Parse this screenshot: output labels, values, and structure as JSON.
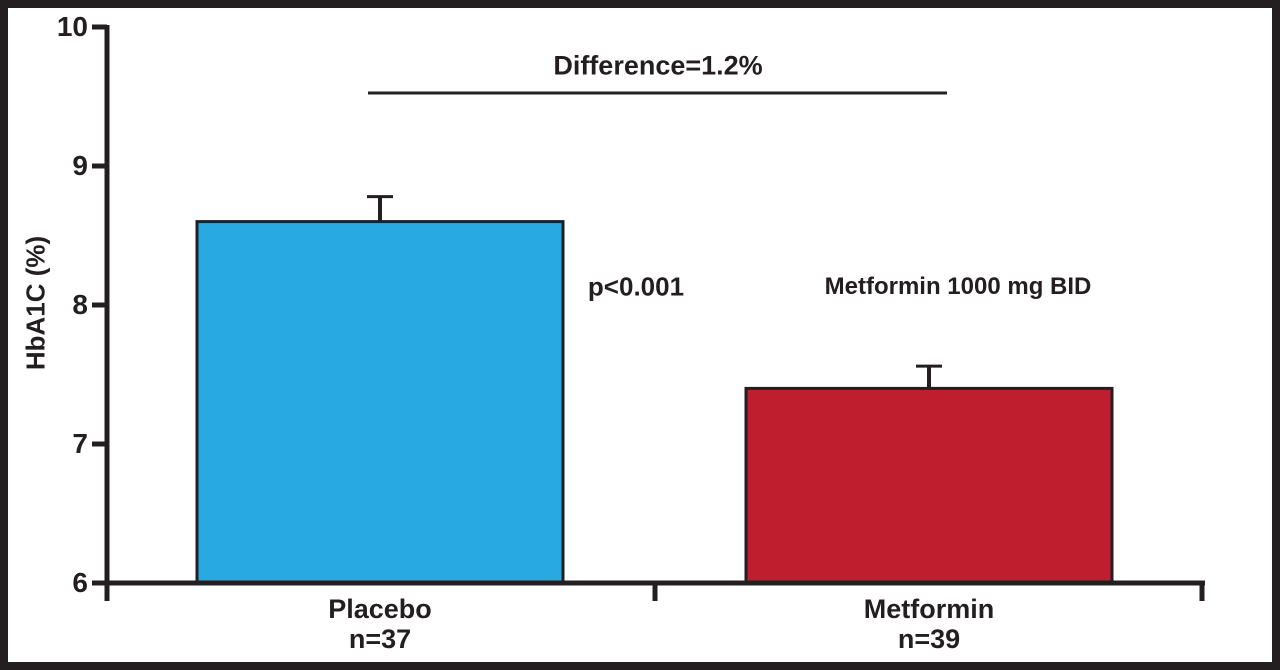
{
  "frame": {
    "border_color": "#231f20",
    "background_color": "#ffffff",
    "axis_color": "#231f20",
    "text_color": "#231f20"
  },
  "chart_data": {
    "type": "bar",
    "title": "",
    "xlabel": "",
    "ylabel": "HbA1C (%)",
    "ylim": [
      6,
      10
    ],
    "yticks": [
      "6",
      "7",
      "8",
      "9",
      "10"
    ],
    "ytick_values": [
      6,
      7,
      8,
      9,
      10
    ],
    "grid": "off",
    "legend": "none",
    "categories": [
      "Placebo",
      "Metformin"
    ],
    "category_sublabels": [
      "n=37",
      "n=39"
    ],
    "values": [
      8.6,
      7.4
    ],
    "errors_plus": [
      0.18,
      0.16
    ],
    "bar_colors": [
      "#29a9e1",
      "#be1e2d"
    ],
    "bar_edge_color": "#231f20",
    "annotations": {
      "difference_label": "Difference=1.2%",
      "p_value": "p<0.001",
      "treatment_label": "Metformin 1000 mg BID"
    }
  }
}
